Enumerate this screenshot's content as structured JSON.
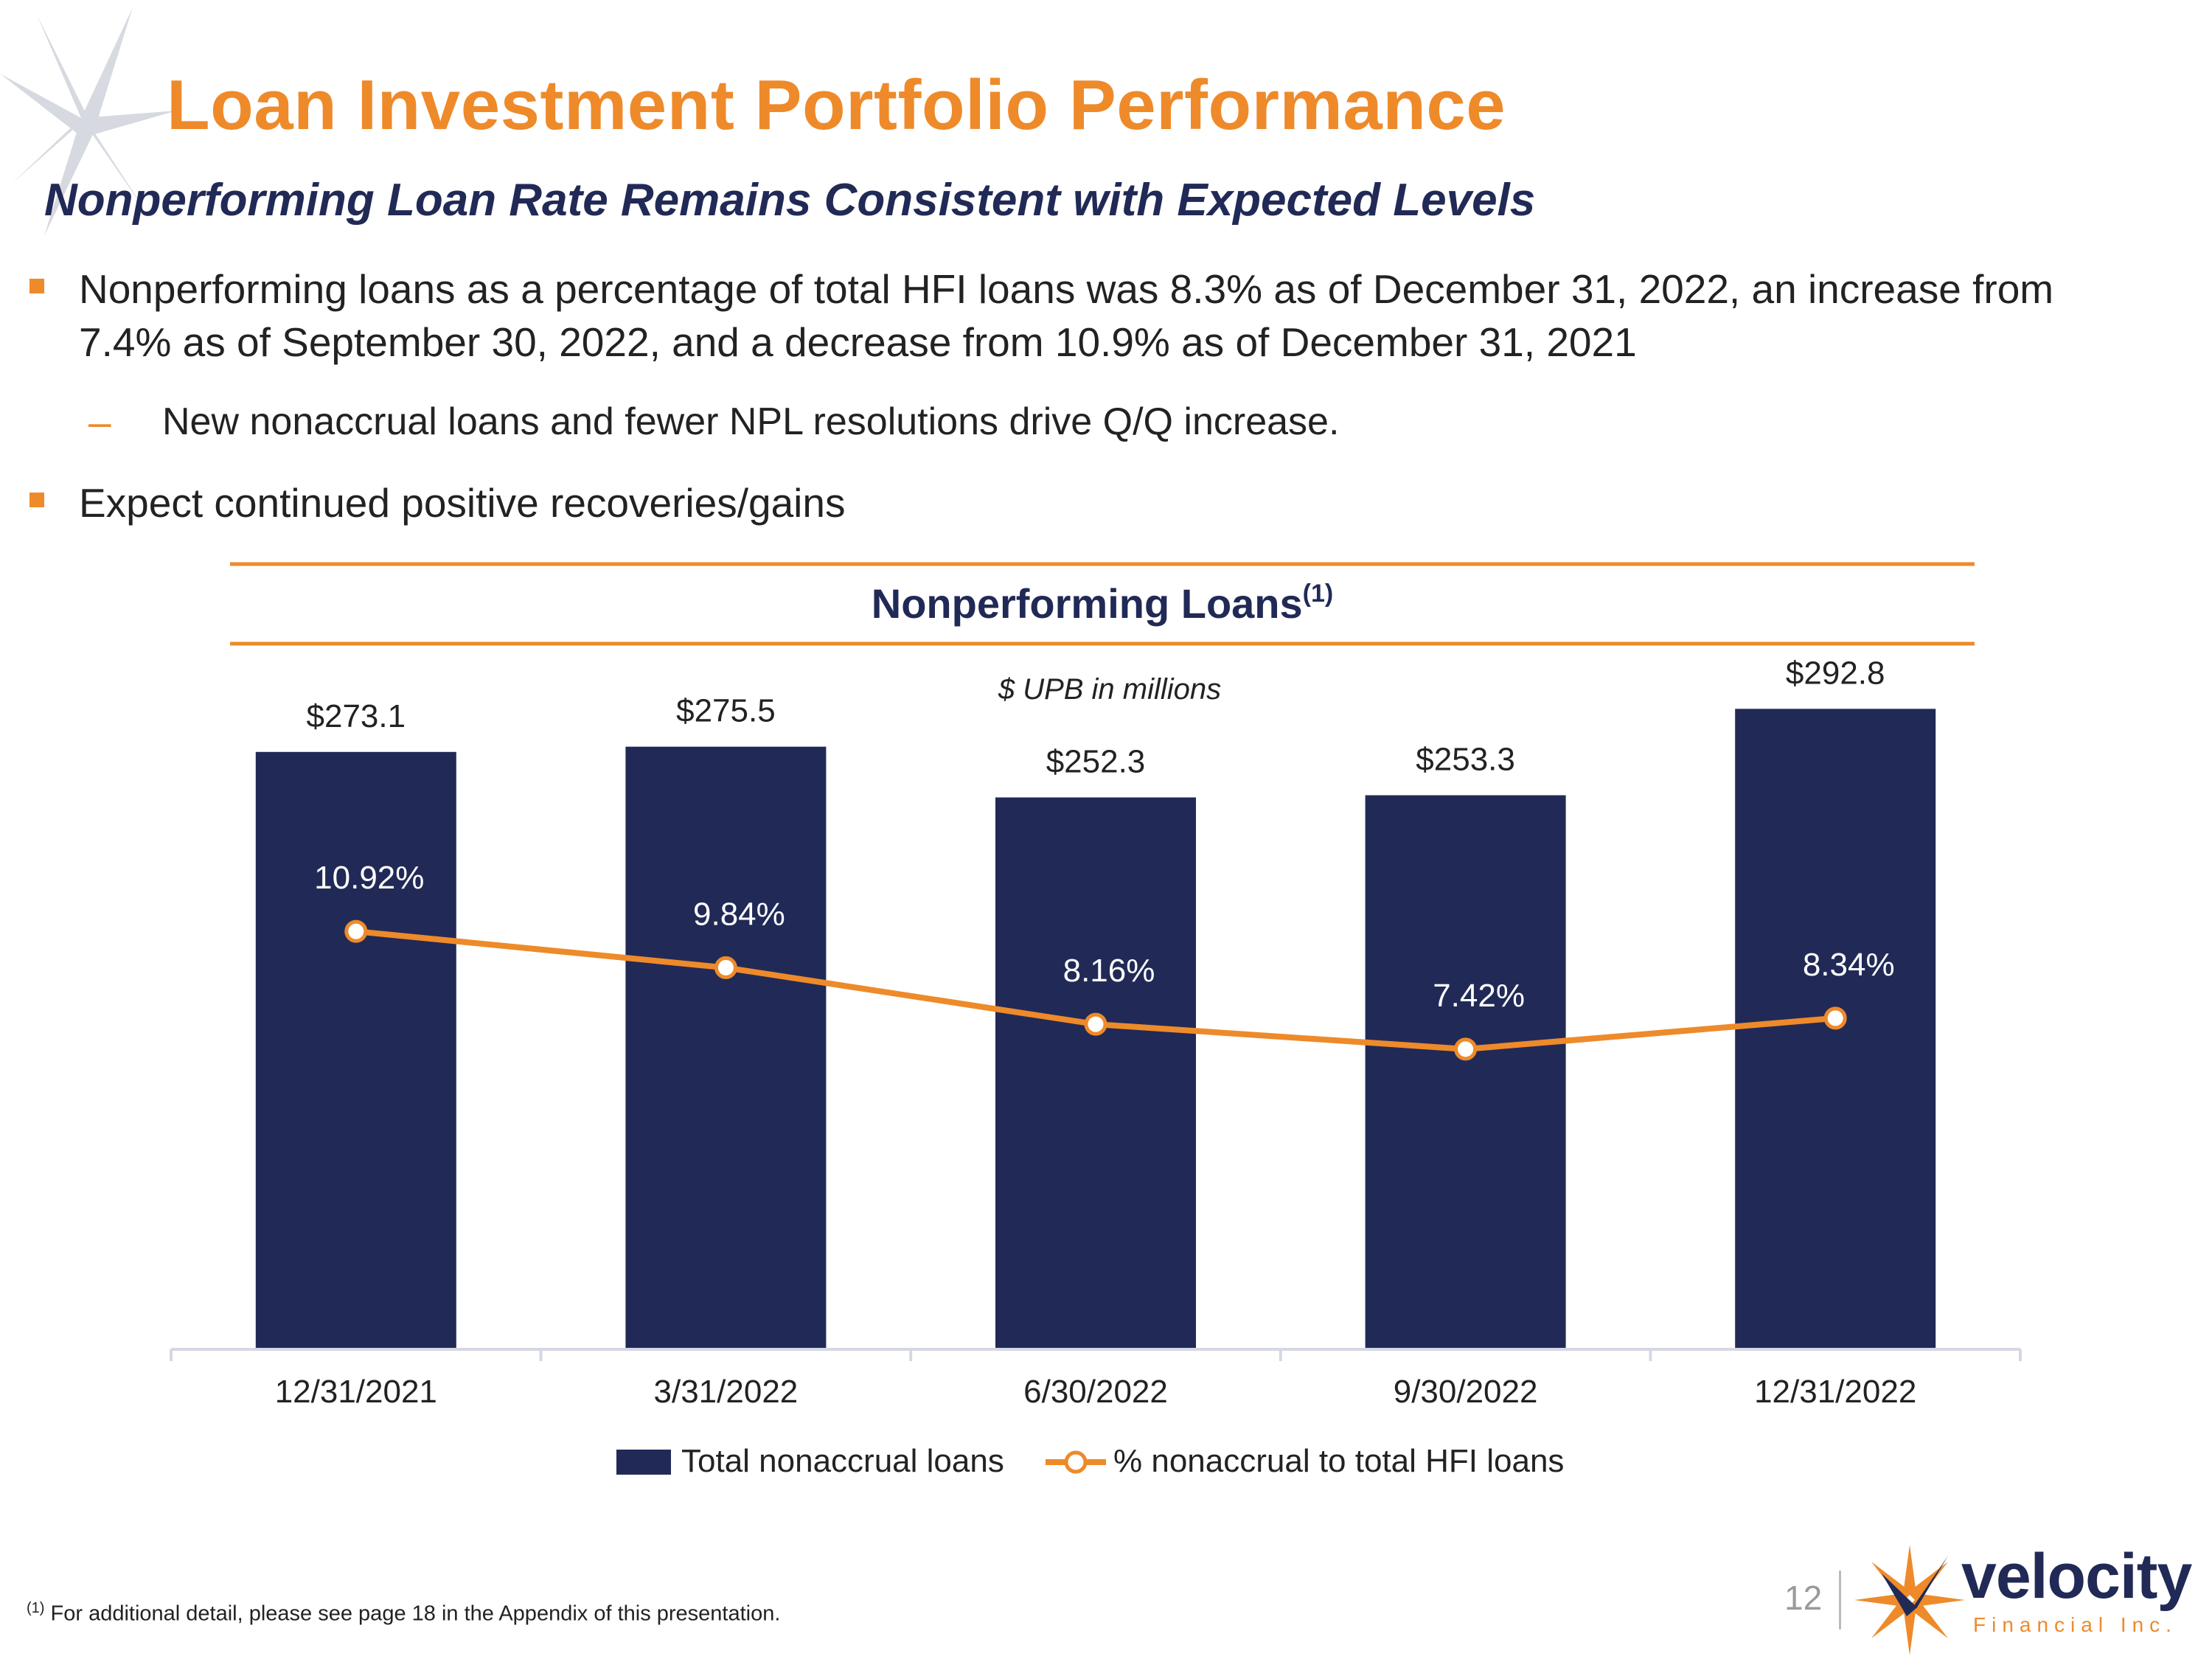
{
  "slide": {
    "title": "Loan Investment Portfolio Performance",
    "subtitle": "Nonperforming Loan Rate Remains Consistent with Expected Levels",
    "bullets": [
      {
        "text_line1": "Nonperforming loans as a percentage of total HFI loans was 8.3% as of December 31, 2022, an increase from",
        "text_line2": "7.4% as of September 30, 2022, and a decrease from 10.9% as of December 31, 2021",
        "sub": "New nonaccrual loans and fewer NPL resolutions drive Q/Q increase.",
        "sub_dash": "–"
      },
      {
        "text_line1": "Expect continued positive recoveries/gains"
      }
    ],
    "footnote_marker": "(1)",
    "footnote_text": "For additional detail, please see page 18 in the Appendix of this presentation.",
    "page_number": "12",
    "logo": {
      "name": "velocity",
      "tagline": "Financial Inc."
    },
    "colors": {
      "orange": "#EE8A2A",
      "navy": "#212A56"
    }
  },
  "chart_data": {
    "type": "bar",
    "title": "Nonperforming Loans",
    "title_sup": "(1)",
    "unit_note": "$ UPB in millions",
    "categories": [
      "12/31/2021",
      "3/31/2022",
      "6/30/2022",
      "9/30/2022",
      "12/31/2022"
    ],
    "series": [
      {
        "name": "Total nonaccrual loans",
        "type": "bar",
        "values": [
          273.1,
          275.5,
          252.3,
          253.3,
          292.8
        ],
        "labels": [
          "$273.1",
          "$275.5",
          "$252.3",
          "$253.3",
          "$292.8"
        ],
        "color": "#212A56"
      },
      {
        "name": "% nonaccrual to total HFI loans",
        "type": "line",
        "values": [
          10.92,
          9.84,
          8.16,
          7.42,
          8.34
        ],
        "labels": [
          "10.92%",
          "9.84%",
          "8.16%",
          "7.42%",
          "8.34%"
        ],
        "color": "#EE8A2A"
      }
    ],
    "ylim_bars": [
      0,
      300
    ],
    "ylim_line": [
      -1.5,
      18
    ],
    "grid": false,
    "legend": "bottom"
  }
}
